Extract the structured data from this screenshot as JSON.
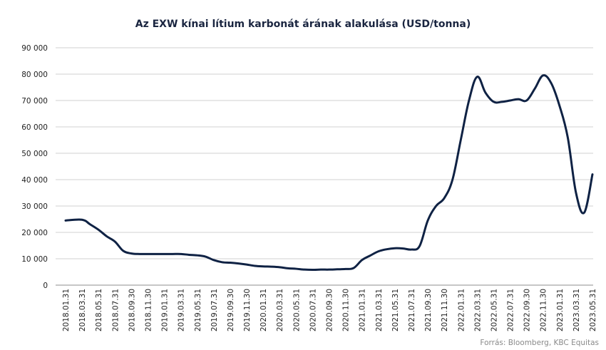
{
  "chart_data": {
    "type": "line",
    "title": "Az EXW kínai lítium  karbonát árának alakulása (USD/tonna)",
    "xlabel": "",
    "ylabel": "",
    "ylim": [
      0,
      90000
    ],
    "yticks": [
      "0",
      "10 000",
      "20 000",
      "30 000",
      "40 000",
      "50 000",
      "60 000",
      "70 000",
      "80 000",
      "90 000"
    ],
    "ytick_values": [
      0,
      10000,
      20000,
      30000,
      40000,
      50000,
      60000,
      70000,
      80000,
      90000
    ],
    "xtick_labels": [
      "2018.01.31",
      "2018.03.31",
      "2018.05.31",
      "2018.07.31",
      "2018.09.30",
      "2018.11.30",
      "2019.01.31",
      "2019.03.31",
      "2019.05.31",
      "2019.07.31",
      "2019.09.30",
      "2019.11.30",
      "2020.01.31",
      "2020.03.31",
      "2020.05.31",
      "2020.07.31",
      "2020.09.30",
      "2020.11.30",
      "2021.01.31",
      "2021.03.31",
      "2021.05.31",
      "2021.07.31",
      "2021.09.30",
      "2021.11.30",
      "2022.01.31",
      "2022.03.31",
      "2022.05.31",
      "2022.07.31",
      "2022.09.30",
      "2022.11.30",
      "2023.01.31",
      "2023.03.31",
      "2023.05.31"
    ],
    "grid": true,
    "legend": "none",
    "series": [
      {
        "color": "#0f2244",
        "x": [
          "2018.01.31",
          "2018.03.31",
          "2018.04.30",
          "2018.05.31",
          "2018.06.30",
          "2018.07.31",
          "2018.08.31",
          "2018.09.30",
          "2018.10.31",
          "2018.11.30",
          "2018.12.31",
          "2019.01.31",
          "2019.02.28",
          "2019.03.31",
          "2019.04.30",
          "2019.05.31",
          "2019.06.30",
          "2019.07.31",
          "2019.08.31",
          "2019.09.30",
          "2019.10.31",
          "2019.11.30",
          "2019.12.31",
          "2020.01.31",
          "2020.02.29",
          "2020.03.31",
          "2020.04.30",
          "2020.05.31",
          "2020.06.30",
          "2020.07.31",
          "2020.08.31",
          "2020.09.30",
          "2020.10.31",
          "2020.11.30",
          "2020.12.31",
          "2021.01.31",
          "2021.02.28",
          "2021.03.31",
          "2021.04.30",
          "2021.05.31",
          "2021.06.30",
          "2021.07.31",
          "2021.08.31",
          "2021.09.30",
          "2021.10.31",
          "2021.11.30",
          "2021.12.31",
          "2022.01.31",
          "2022.02.28",
          "2022.03.31",
          "2022.04.30",
          "2022.05.31",
          "2022.06.30",
          "2022.07.31",
          "2022.08.31",
          "2022.09.30",
          "2022.10.31",
          "2022.11.30",
          "2022.12.31",
          "2023.01.31",
          "2023.02.28",
          "2023.03.31",
          "2023.04.30",
          "2023.05.31"
        ],
        "values": [
          24500,
          24800,
          23000,
          21000,
          18500,
          16500,
          13000,
          12000,
          11800,
          11800,
          11800,
          11800,
          11800,
          11800,
          11500,
          11300,
          10800,
          9500,
          8700,
          8500,
          8200,
          7800,
          7300,
          7100,
          7000,
          6800,
          6400,
          6200,
          5900,
          5800,
          5900,
          5900,
          6000,
          6100,
          6500,
          9500,
          11200,
          12800,
          13600,
          14000,
          13900,
          13500,
          14800,
          24500,
          30000,
          33000,
          40000,
          55000,
          70000,
          79000,
          73000,
          69500,
          69500,
          70000,
          70500,
          70000,
          74500,
          79500,
          76500,
          68000,
          56000,
          35000,
          27500,
          42000
        ]
      }
    ]
  },
  "source_note": "Forrás: Bloomberg,  KBC Equitas"
}
